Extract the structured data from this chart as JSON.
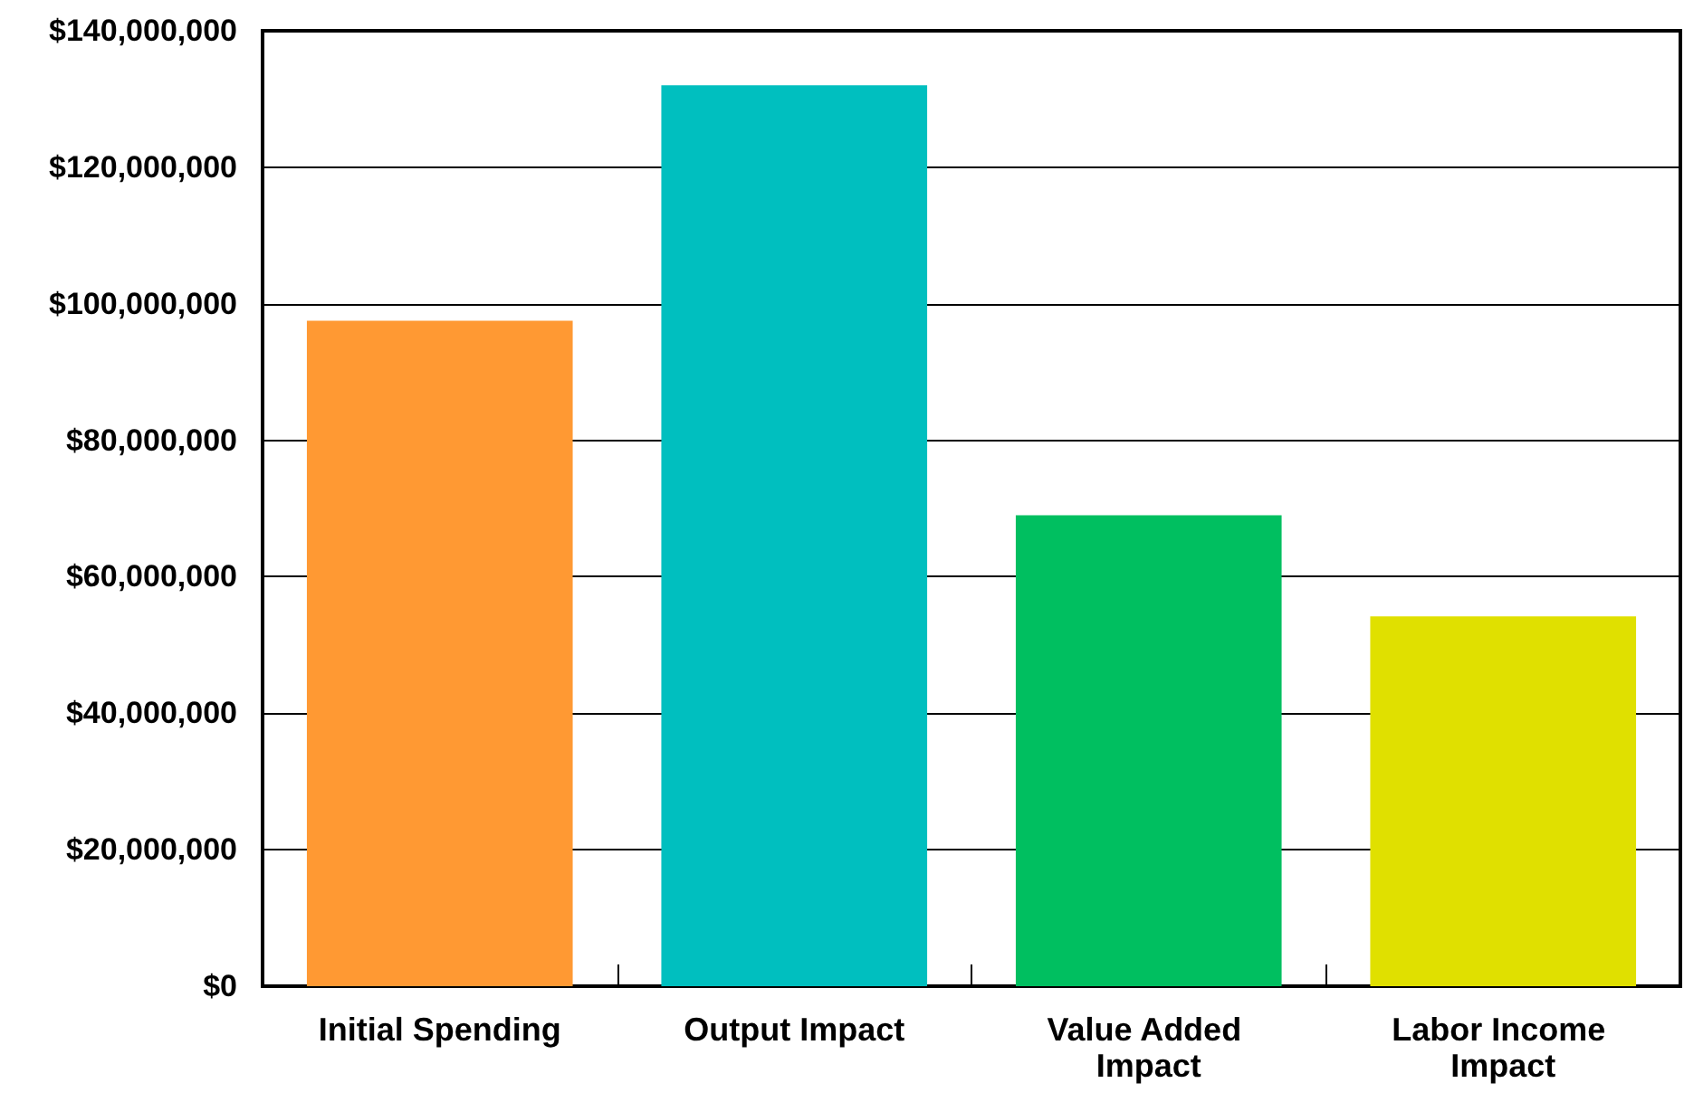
{
  "chart_data": {
    "type": "bar",
    "categories": [
      "Initial Spending",
      "Output Impact",
      "Value Added Impact",
      "Labor Income Impact"
    ],
    "values": [
      97500000,
      132000000,
      69000000,
      54200000
    ],
    "colors": [
      "#ff9933",
      "#00bfbf",
      "#00bf60",
      "#e0e000"
    ],
    "ylim": [
      0,
      140000000
    ],
    "yticks": [
      {
        "value": 0,
        "label": "$0"
      },
      {
        "value": 20000000,
        "label": "$20,000,000"
      },
      {
        "value": 40000000,
        "label": "$40,000,000"
      },
      {
        "value": 60000000,
        "label": "$60,000,000"
      },
      {
        "value": 80000000,
        "label": "$80,000,000"
      },
      {
        "value": 100000000,
        "label": "$100,000,000"
      },
      {
        "value": 120000000,
        "label": "$120,000,000"
      },
      {
        "value": 140000000,
        "label": "$140,000,000"
      }
    ],
    "grid": "y"
  }
}
